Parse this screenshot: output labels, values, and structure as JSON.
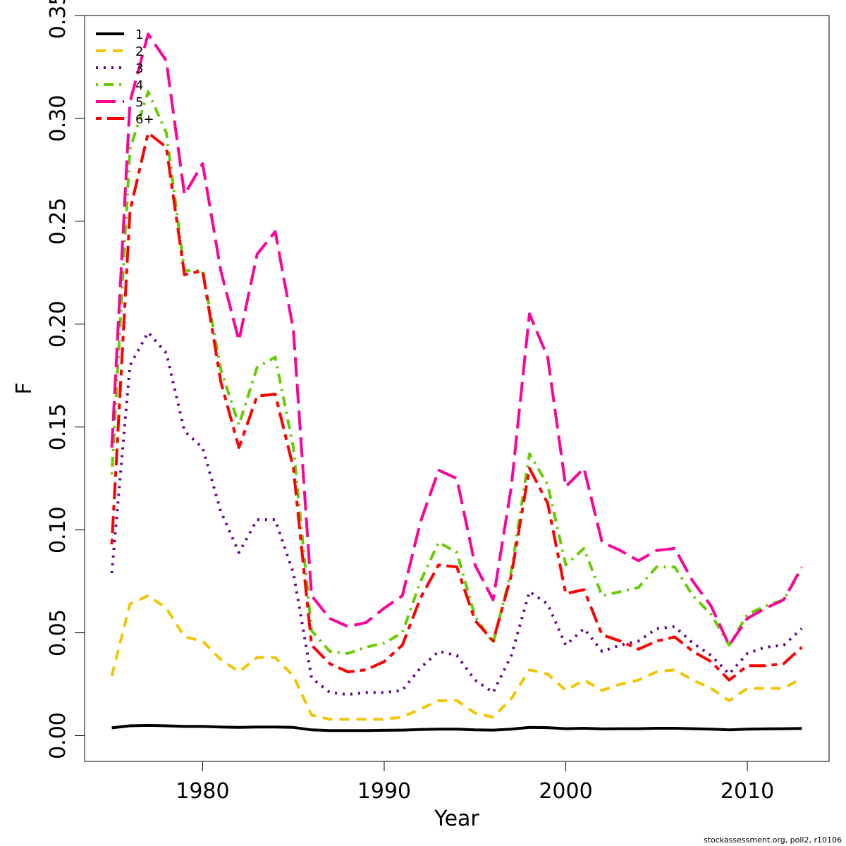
{
  "footer": "stockassessment.org, poll2, r10106",
  "chart_data": {
    "type": "line",
    "xlabel": "Year",
    "ylabel": "F",
    "xlim": [
      1973.5,
      2014.5
    ],
    "ylim": [
      -0.0125,
      0.35
    ],
    "xticks": [
      1980,
      1990,
      2000,
      2010
    ],
    "xtick_labels": [
      "1980",
      "1990",
      "2000",
      "2010"
    ],
    "yticks": [
      0,
      0.05,
      0.1,
      0.15,
      0.2,
      0.25,
      0.3,
      0.35
    ],
    "ytick_labels": [
      "0.00",
      "0.05",
      "0.10",
      "0.15",
      "0.20",
      "0.25",
      "0.30",
      "0.35"
    ],
    "grid": false,
    "legend_position": "top-left",
    "x": [
      1975,
      1976,
      1977,
      1978,
      1979,
      1980,
      1981,
      1982,
      1983,
      1984,
      1985,
      1986,
      1987,
      1988,
      1989,
      1990,
      1991,
      1992,
      1993,
      1994,
      1995,
      1996,
      1997,
      1998,
      1999,
      2000,
      2001,
      2002,
      2003,
      2004,
      2005,
      2006,
      2007,
      2008,
      2009,
      2010,
      2011,
      2012,
      2013
    ],
    "series": [
      {
        "name": "1",
        "color": "#000000",
        "dash": "solid",
        "values": [
          0.0038,
          0.0048,
          0.005,
          0.0048,
          0.0045,
          0.0045,
          0.0042,
          0.004,
          0.0042,
          0.0042,
          0.004,
          0.0028,
          0.0025,
          0.0025,
          0.0025,
          0.0026,
          0.0027,
          0.003,
          0.0032,
          0.0032,
          0.0028,
          0.0027,
          0.0032,
          0.004,
          0.0039,
          0.0034,
          0.0036,
          0.0033,
          0.0034,
          0.0034,
          0.0036,
          0.0036,
          0.0034,
          0.0032,
          0.0028,
          0.0032,
          0.0033,
          0.0034,
          0.0035
        ]
      },
      {
        "name": "2",
        "color": "#f5c400",
        "dash": "dashed",
        "values": [
          0.029,
          0.064,
          0.068,
          0.062,
          0.048,
          0.046,
          0.037,
          0.031,
          0.038,
          0.038,
          0.029,
          0.01,
          0.008,
          0.008,
          0.008,
          0.008,
          0.009,
          0.013,
          0.017,
          0.017,
          0.011,
          0.009,
          0.018,
          0.032,
          0.03,
          0.022,
          0.027,
          0.022,
          0.025,
          0.027,
          0.031,
          0.032,
          0.027,
          0.023,
          0.017,
          0.023,
          0.023,
          0.023,
          0.028
        ]
      },
      {
        "name": "3",
        "color": "#63008f",
        "dash": "dotted",
        "values": [
          0.079,
          0.18,
          0.196,
          0.186,
          0.148,
          0.14,
          0.109,
          0.089,
          0.105,
          0.105,
          0.079,
          0.028,
          0.021,
          0.02,
          0.021,
          0.021,
          0.022,
          0.033,
          0.041,
          0.039,
          0.027,
          0.021,
          0.039,
          0.07,
          0.064,
          0.044,
          0.052,
          0.041,
          0.044,
          0.046,
          0.052,
          0.053,
          0.045,
          0.039,
          0.03,
          0.04,
          0.043,
          0.044,
          0.052
        ]
      },
      {
        "name": "4",
        "color": "#66cc00",
        "dash": "dotdash",
        "values": [
          0.127,
          0.285,
          0.313,
          0.293,
          0.226,
          0.226,
          0.178,
          0.151,
          0.179,
          0.184,
          0.14,
          0.051,
          0.041,
          0.04,
          0.043,
          0.045,
          0.05,
          0.075,
          0.094,
          0.089,
          0.058,
          0.045,
          0.08,
          0.137,
          0.122,
          0.083,
          0.091,
          0.068,
          0.07,
          0.072,
          0.082,
          0.082,
          0.068,
          0.059,
          0.044,
          0.059,
          0.063,
          0.066,
          0.081
        ]
      },
      {
        "name": "5",
        "color": "#ff0099",
        "dash": "longdash",
        "values": [
          0.14,
          0.308,
          0.341,
          0.328,
          0.263,
          0.278,
          0.226,
          0.192,
          0.234,
          0.245,
          0.197,
          0.068,
          0.057,
          0.053,
          0.055,
          0.062,
          0.068,
          0.104,
          0.129,
          0.125,
          0.083,
          0.066,
          0.121,
          0.205,
          0.184,
          0.121,
          0.13,
          0.094,
          0.09,
          0.085,
          0.09,
          0.091,
          0.075,
          0.063,
          0.044,
          0.057,
          0.062,
          0.066,
          0.082
        ]
      },
      {
        "name": "6+",
        "color": "#ff0000",
        "dash": "twodash",
        "values": [
          0.093,
          0.255,
          0.293,
          0.286,
          0.224,
          0.226,
          0.172,
          0.14,
          0.165,
          0.166,
          0.13,
          0.044,
          0.035,
          0.031,
          0.032,
          0.036,
          0.044,
          0.067,
          0.083,
          0.082,
          0.056,
          0.046,
          0.078,
          0.13,
          0.113,
          0.069,
          0.071,
          0.049,
          0.046,
          0.042,
          0.046,
          0.048,
          0.041,
          0.036,
          0.027,
          0.034,
          0.034,
          0.035,
          0.043
        ]
      }
    ]
  }
}
